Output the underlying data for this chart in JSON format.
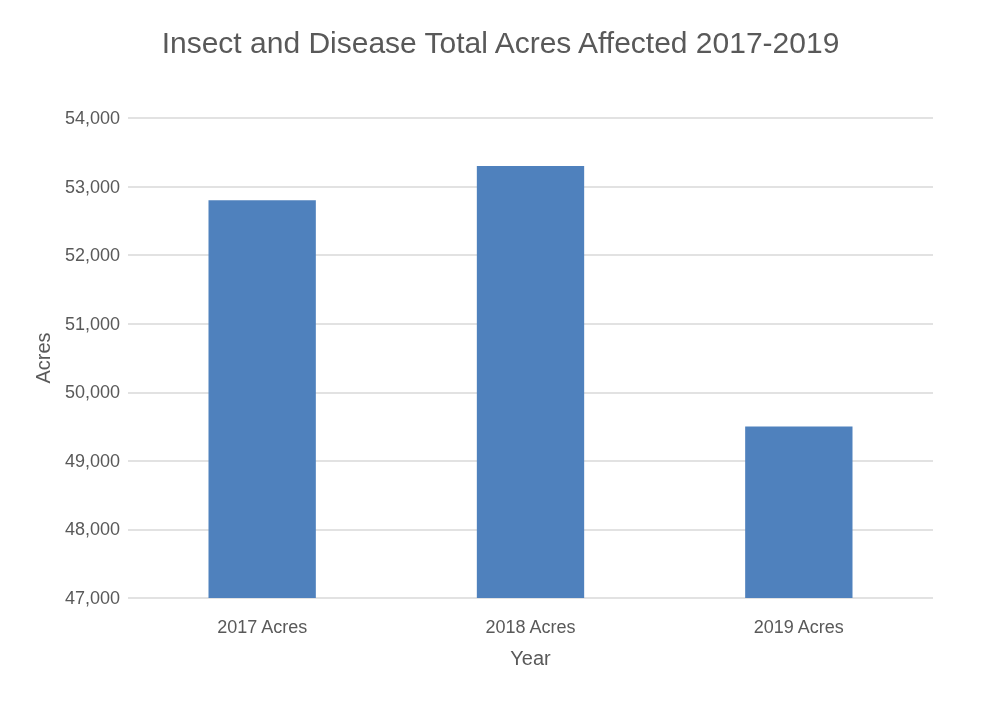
{
  "chart_data": {
    "type": "bar",
    "title": "Insect and Disease Total Acres Affected 2017-2019",
    "xlabel": "Year",
    "ylabel": "Acres",
    "categories": [
      "2017 Acres",
      "2018 Acres",
      "2019 Acres"
    ],
    "values": [
      52800,
      53300,
      49500
    ],
    "color": "#4f81bd",
    "ylim": [
      47000,
      54000
    ],
    "yticks": [
      {
        "value": 47000,
        "label": "47,000"
      },
      {
        "value": 48000,
        "label": "48,000"
      },
      {
        "value": 49000,
        "label": "49,000"
      },
      {
        "value": 50000,
        "label": "50,000"
      },
      {
        "value": 51000,
        "label": "51,000"
      },
      {
        "value": 52000,
        "label": "52,000"
      },
      {
        "value": 53000,
        "label": "53,000"
      },
      {
        "value": 54000,
        "label": "54,000"
      }
    ],
    "grid": "y"
  }
}
